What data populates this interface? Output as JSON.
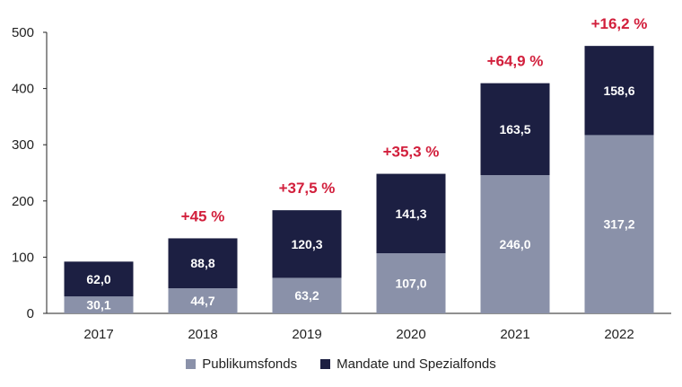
{
  "chart_data": {
    "type": "bar",
    "stacked": true,
    "categories": [
      "2017",
      "2018",
      "2019",
      "2020",
      "2021",
      "2022"
    ],
    "series": [
      {
        "name": "Publikumsfonds",
        "values": [
          30.1,
          44.7,
          63.2,
          107.0,
          246.0,
          317.2
        ],
        "labels": [
          "30,1",
          "44,7",
          "63,2",
          "107,0",
          "246,0",
          "317,2"
        ],
        "color": "#8a91a9"
      },
      {
        "name": "Mandate und Spezialfonds",
        "values": [
          62.0,
          88.8,
          120.3,
          141.3,
          163.5,
          158.6
        ],
        "labels": [
          "62,0",
          "88,8",
          "120,3",
          "141,3",
          "163,5",
          "158,6"
        ],
        "color": "#1c1f42"
      }
    ],
    "growth_labels": [
      "",
      "+45 %",
      "+37,5 %",
      "+35,3 %",
      "+64,9 %",
      "+16,2 %"
    ],
    "growth_color": "#d21f3c",
    "yticks": [
      "0",
      "100",
      "200",
      "300",
      "400",
      "500"
    ],
    "ylim": [
      0,
      500
    ],
    "legend_position": "bottom",
    "grid": false
  }
}
